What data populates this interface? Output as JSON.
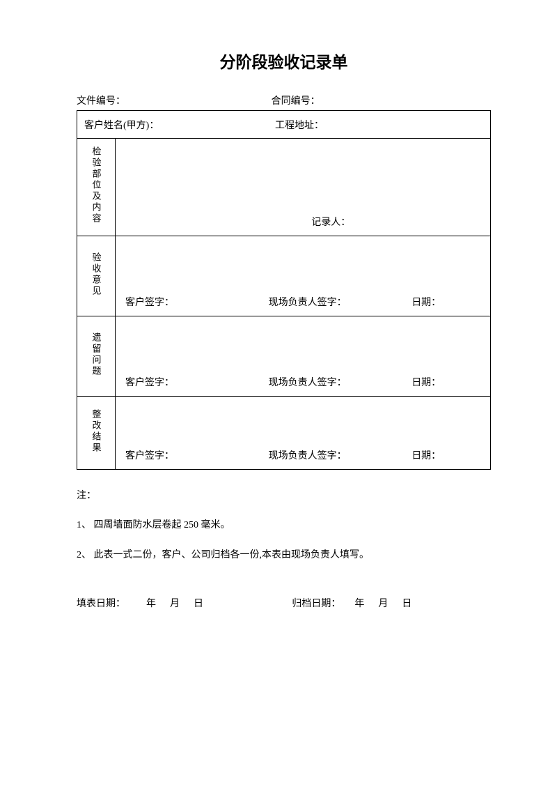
{
  "title": "分阶段验收记录单",
  "header": {
    "doc_no_label": "文件编号：",
    "contract_no_label": "合同编号："
  },
  "info": {
    "customer_label": "客户姓名(甲方)：",
    "address_label": "工程地址："
  },
  "rows": {
    "inspection": {
      "label": "检验部位及内容",
      "recorder_label": "记录人："
    },
    "opinion": {
      "label": "验收意见",
      "customer_sign": "客户签字：",
      "manager_sign": "现场负责人签字：",
      "date_label": "日期："
    },
    "issues": {
      "label": "遗留问题",
      "customer_sign": "客户签字：",
      "manager_sign": "现场负责人签字：",
      "date_label": "日期："
    },
    "result": {
      "label": "整改结果",
      "customer_sign": "客户签字：",
      "manager_sign": "现场负责人签字：",
      "date_label": "日期："
    }
  },
  "notes": {
    "prefix": "注：",
    "item1": "1、 四周墙面防水层卷起 250 毫米。",
    "item2": "2、 此表一式二份，客户、公司归档各一份,本表由现场负责人填写。"
  },
  "footer": {
    "fill_date_label": "填表日期：",
    "archive_date_label": "归档日期：",
    "year": "年",
    "month": "月",
    "day": "日"
  }
}
